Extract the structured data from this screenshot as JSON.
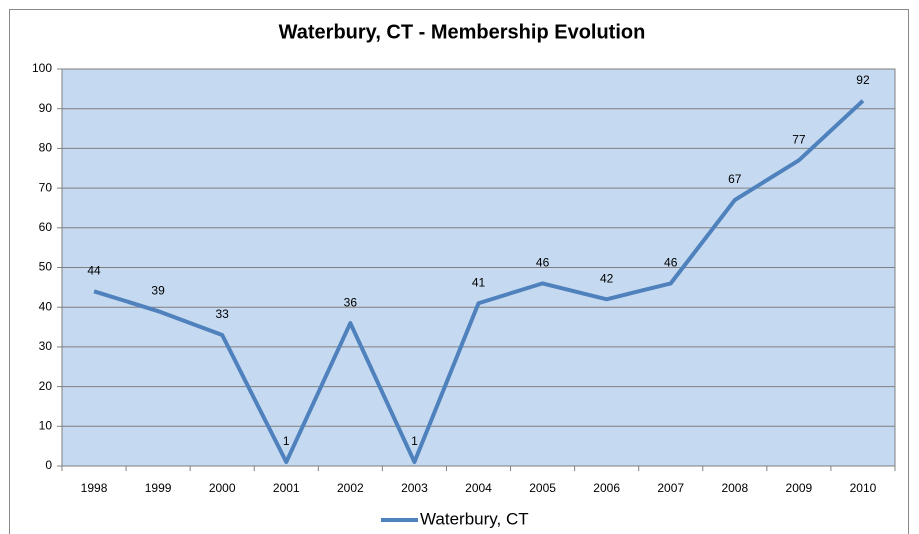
{
  "chart_data": {
    "type": "line",
    "title": "Waterbury, CT - Membership Evolution",
    "categories": [
      "1998",
      "1999",
      "2000",
      "2001",
      "2002",
      "2003",
      "2004",
      "2005",
      "2006",
      "2007",
      "2008",
      "2009",
      "2010"
    ],
    "series": [
      {
        "name": "Waterbury, CT",
        "color": "#4f81bd",
        "values": [
          44,
          39,
          33,
          1,
          36,
          1,
          41,
          46,
          42,
          46,
          67,
          77,
          92
        ]
      }
    ],
    "ylim": [
      0,
      100
    ],
    "yticks": [
      0,
      10,
      20,
      30,
      40,
      50,
      60,
      70,
      80,
      90,
      100
    ],
    "grid": true,
    "legend": "bottom",
    "show_values": true
  }
}
